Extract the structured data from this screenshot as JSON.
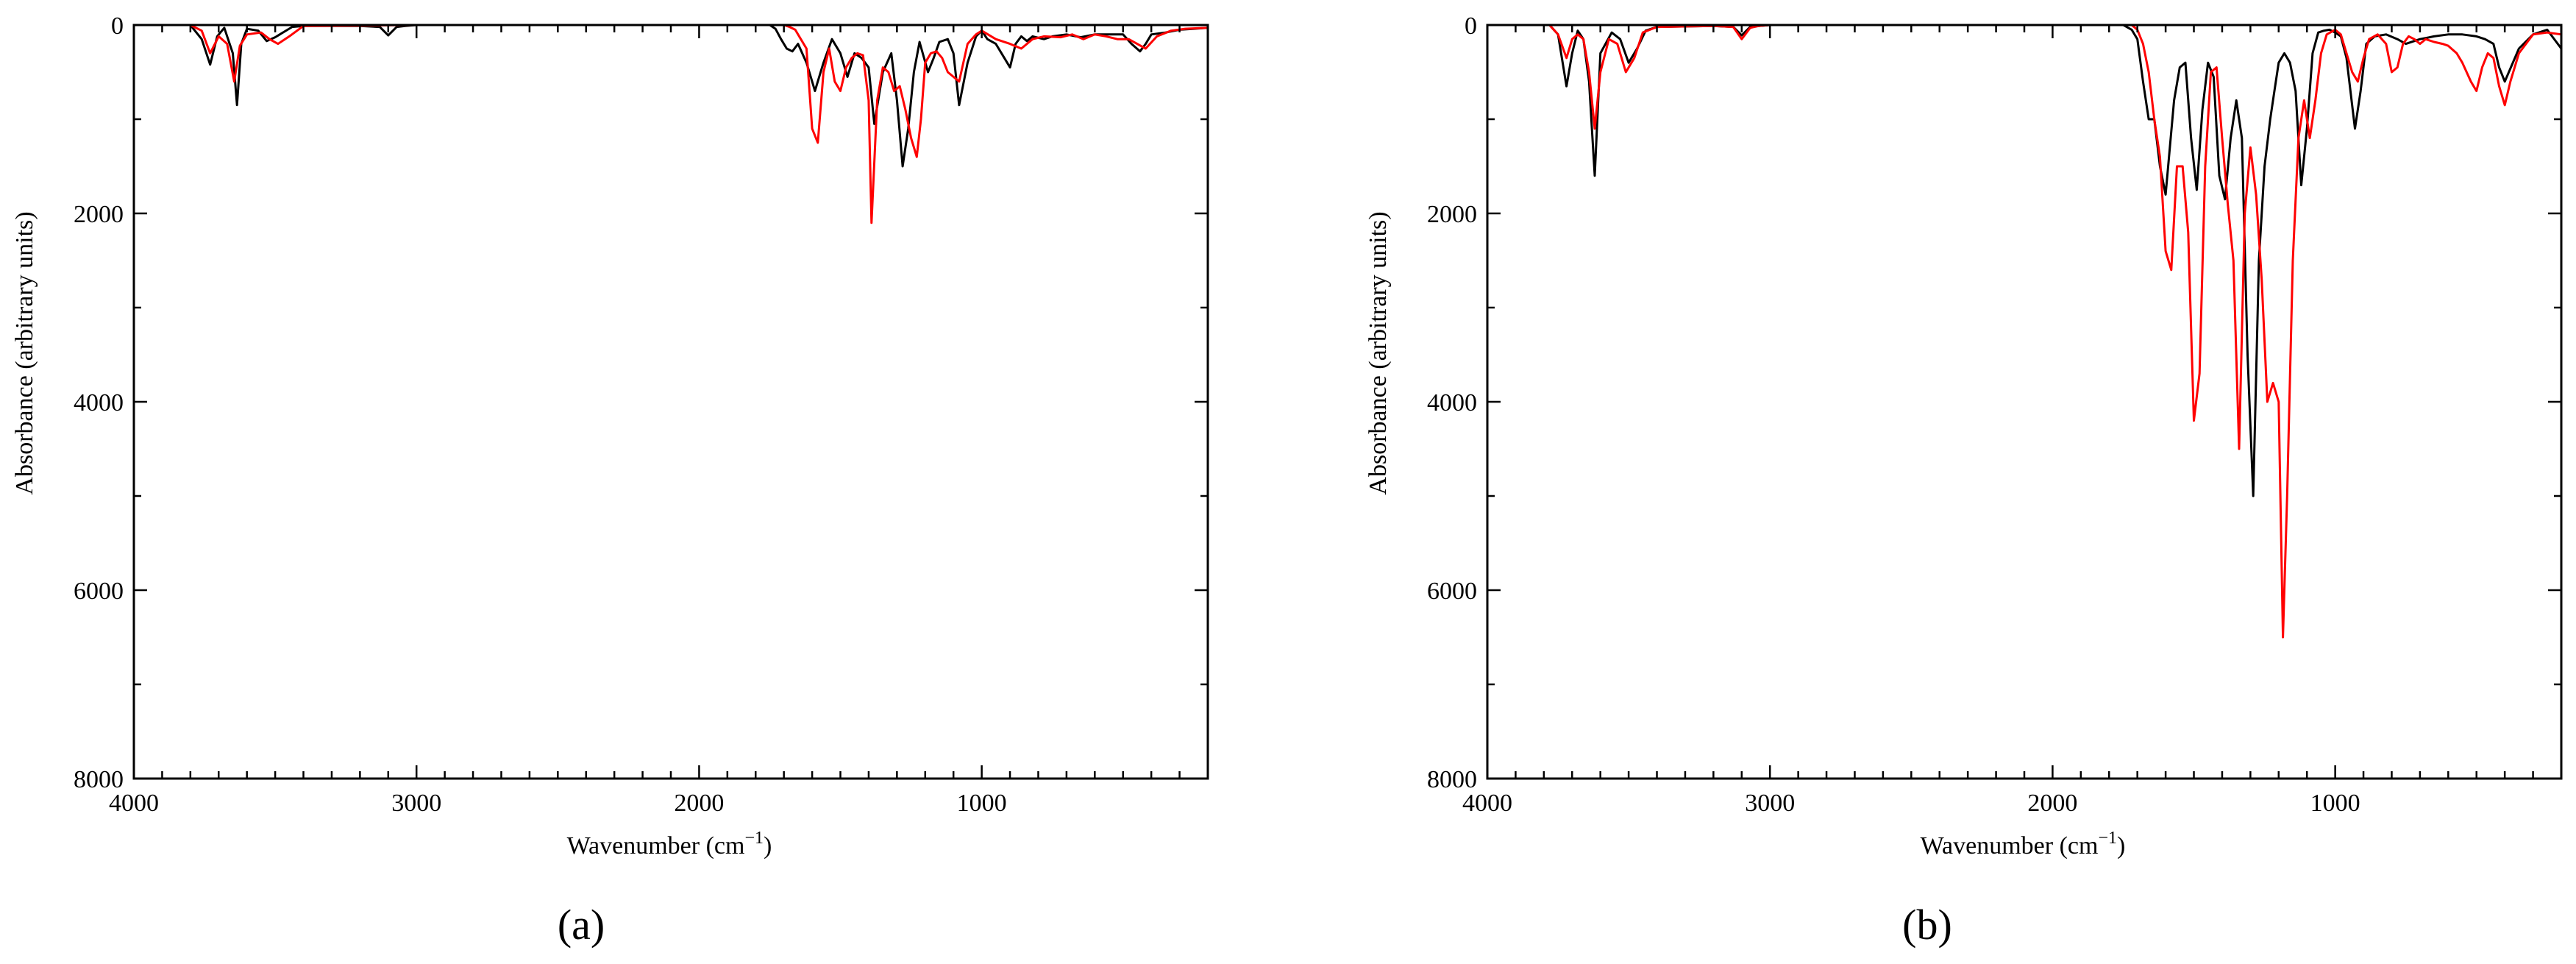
{
  "colors": {
    "black_series": "#000000",
    "red_series": "#ff0000",
    "axis": "#000000"
  },
  "chart_data": [
    {
      "type": "line",
      "panel_label": "(a)",
      "xlabel": "Wavenumber (cm",
      "xlabel_sup": "−1",
      "xlabel_close": ")",
      "ylabel": "Absorbance (arbitrary units)",
      "xlim": [
        4000,
        200
      ],
      "ylim": [
        0,
        8000
      ],
      "y_inverted": true,
      "xticks": [
        4000,
        3000,
        2000,
        1000
      ],
      "xtick_labels": [
        "4000",
        "3000",
        "2000",
        "1000"
      ],
      "yticks": [
        0,
        2000,
        4000,
        6000,
        8000
      ],
      "ytick_labels": [
        "0",
        "2000",
        "4000",
        "6000",
        "8000"
      ],
      "grid": false,
      "series": [
        {
          "color": "black",
          "x": [
            4000,
            3800,
            3760,
            3730,
            3705,
            3680,
            3650,
            3635,
            3620,
            3600,
            3560,
            3530,
            3500,
            3440,
            3400,
            3300,
            3200,
            3130,
            3100,
            3070,
            3040,
            3000,
            2500,
            1750,
            1730,
            1710,
            1690,
            1670,
            1650,
            1620,
            1590,
            1560,
            1530,
            1500,
            1475,
            1450,
            1425,
            1400,
            1380,
            1350,
            1320,
            1300,
            1280,
            1260,
            1240,
            1220,
            1190,
            1170,
            1150,
            1120,
            1100,
            1080,
            1050,
            1020,
            1000,
            980,
            950,
            920,
            900,
            880,
            860,
            840,
            820,
            780,
            750,
            700,
            650,
            600,
            550,
            500,
            470,
            440,
            420,
            400,
            350,
            300,
            250,
            200
          ],
          "y": [
            0,
            0,
            150,
            420,
            120,
            30,
            300,
            850,
            200,
            40,
            60,
            170,
            130,
            20,
            10,
            10,
            10,
            20,
            110,
            20,
            10,
            0,
            0,
            0,
            40,
            150,
            250,
            280,
            200,
            400,
            700,
            400,
            150,
            300,
            550,
            300,
            350,
            450,
            1050,
            500,
            300,
            800,
            1500,
            1100,
            500,
            180,
            500,
            350,
            180,
            150,
            300,
            850,
            400,
            120,
            60,
            150,
            200,
            350,
            450,
            200,
            120,
            170,
            120,
            150,
            120,
            100,
            130,
            100,
            100,
            100,
            200,
            280,
            200,
            100,
            80,
            50,
            40,
            30
          ]
        },
        {
          "color": "red",
          "x": [
            4000,
            3800,
            3760,
            3730,
            3700,
            3670,
            3645,
            3625,
            3600,
            3550,
            3520,
            3490,
            3450,
            3400,
            3000,
            1700,
            1680,
            1660,
            1640,
            1620,
            1600,
            1580,
            1560,
            1540,
            1520,
            1500,
            1480,
            1460,
            1440,
            1420,
            1400,
            1390,
            1370,
            1350,
            1330,
            1310,
            1290,
            1270,
            1250,
            1230,
            1215,
            1200,
            1180,
            1160,
            1140,
            1120,
            1100,
            1080,
            1050,
            1020,
            1000,
            950,
            900,
            860,
            820,
            780,
            720,
            680,
            640,
            600,
            560,
            520,
            480,
            450,
            420,
            380,
            330,
            280,
            200
          ],
          "y": [
            0,
            0,
            60,
            300,
            120,
            200,
            600,
            220,
            100,
            80,
            150,
            200,
            120,
            10,
            0,
            0,
            20,
            50,
            150,
            250,
            1100,
            1250,
            500,
            250,
            600,
            700,
            450,
            350,
            300,
            320,
            800,
            2100,
            800,
            450,
            500,
            700,
            650,
            900,
            1200,
            1400,
            1000,
            400,
            300,
            280,
            350,
            500,
            550,
            600,
            200,
            100,
            60,
            150,
            200,
            250,
            150,
            120,
            130,
            100,
            150,
            100,
            120,
            150,
            150,
            200,
            250,
            120,
            60,
            40,
            30
          ]
        }
      ]
    },
    {
      "type": "line",
      "panel_label": "(b)",
      "xlabel": "Wavenumber (cm",
      "xlabel_sup": "−1",
      "xlabel_close": ")",
      "ylabel": "Absorbance (arbitrary units)",
      "xlim": [
        4000,
        200
      ],
      "ylim": [
        0,
        8000
      ],
      "y_inverted": true,
      "xticks": [
        4000,
        3000,
        2000,
        1000
      ],
      "xtick_labels": [
        "4000",
        "3000",
        "2000",
        "1000"
      ],
      "yticks": [
        0,
        2000,
        4000,
        6000,
        8000
      ],
      "ytick_labels": [
        "0",
        "2000",
        "4000",
        "6000",
        "8000"
      ],
      "grid": false,
      "series": [
        {
          "color": "black",
          "x": [
            4000,
            3780,
            3750,
            3720,
            3700,
            3680,
            3660,
            3640,
            3620,
            3600,
            3560,
            3530,
            3500,
            3470,
            3440,
            3400,
            3200,
            3130,
            3100,
            3070,
            3040,
            3000,
            1750,
            1720,
            1700,
            1680,
            1660,
            1640,
            1620,
            1600,
            1570,
            1550,
            1530,
            1510,
            1490,
            1470,
            1450,
            1430,
            1410,
            1390,
            1370,
            1350,
            1330,
            1310,
            1290,
            1270,
            1250,
            1230,
            1215,
            1200,
            1180,
            1160,
            1140,
            1120,
            1100,
            1080,
            1060,
            1040,
            1020,
            1000,
            980,
            960,
            930,
            910,
            890,
            860,
            820,
            780,
            750,
            700,
            650,
            600,
            550,
            500,
            470,
            440,
            420,
            400,
            350,
            300,
            250,
            200
          ],
          "y": [
            0,
            0,
            100,
            650,
            300,
            60,
            150,
            600,
            1600,
            300,
            80,
            150,
            400,
            250,
            60,
            20,
            10,
            20,
            110,
            20,
            10,
            0,
            0,
            50,
            150,
            600,
            1000,
            1000,
            1500,
            1800,
            800,
            450,
            400,
            1200,
            1750,
            900,
            400,
            550,
            1600,
            1850,
            1200,
            800,
            1200,
            3500,
            5000,
            2500,
            1500,
            1000,
            700,
            400,
            300,
            400,
            700,
            1700,
            1100,
            300,
            80,
            60,
            50,
            80,
            120,
            350,
            1100,
            700,
            200,
            120,
            100,
            150,
            200,
            150,
            120,
            100,
            100,
            120,
            150,
            200,
            450,
            600,
            250,
            100,
            50,
            250
          ]
        },
        {
          "color": "red",
          "x": [
            4000,
            3780,
            3750,
            3720,
            3700,
            3680,
            3660,
            3640,
            3620,
            3600,
            3570,
            3540,
            3510,
            3480,
            3450,
            3400,
            3200,
            3130,
            3100,
            3070,
            3040,
            3000,
            1720,
            1700,
            1680,
            1660,
            1640,
            1620,
            1600,
            1580,
            1560,
            1540,
            1520,
            1500,
            1480,
            1460,
            1440,
            1420,
            1400,
            1380,
            1360,
            1340,
            1320,
            1300,
            1280,
            1260,
            1240,
            1220,
            1200,
            1185,
            1170,
            1150,
            1130,
            1110,
            1090,
            1070,
            1050,
            1030,
            1000,
            980,
            960,
            940,
            920,
            900,
            880,
            850,
            820,
            800,
            780,
            760,
            740,
            720,
            700,
            680,
            650,
            620,
            600,
            570,
            550,
            520,
            500,
            480,
            460,
            440,
            420,
            400,
            380,
            350,
            300,
            250,
            200
          ],
          "y": [
            0,
            0,
            100,
            350,
            150,
            100,
            150,
            500,
            1100,
            500,
            150,
            200,
            500,
            350,
            80,
            20,
            10,
            20,
            150,
            30,
            10,
            0,
            0,
            50,
            200,
            500,
            1000,
            1400,
            2400,
            2600,
            1500,
            1500,
            2200,
            4200,
            3700,
            1500,
            500,
            450,
            1200,
            1900,
            2500,
            4500,
            2000,
            1300,
            1800,
            2700,
            4000,
            3800,
            4000,
            6500,
            5000,
            2500,
            1200,
            800,
            1200,
            800,
            300,
            100,
            50,
            100,
            300,
            500,
            600,
            350,
            150,
            100,
            200,
            500,
            450,
            200,
            120,
            150,
            200,
            150,
            180,
            200,
            220,
            300,
            400,
            600,
            700,
            450,
            300,
            350,
            650,
            850,
            600,
            300,
            100,
            80,
            100
          ]
        }
      ]
    }
  ]
}
